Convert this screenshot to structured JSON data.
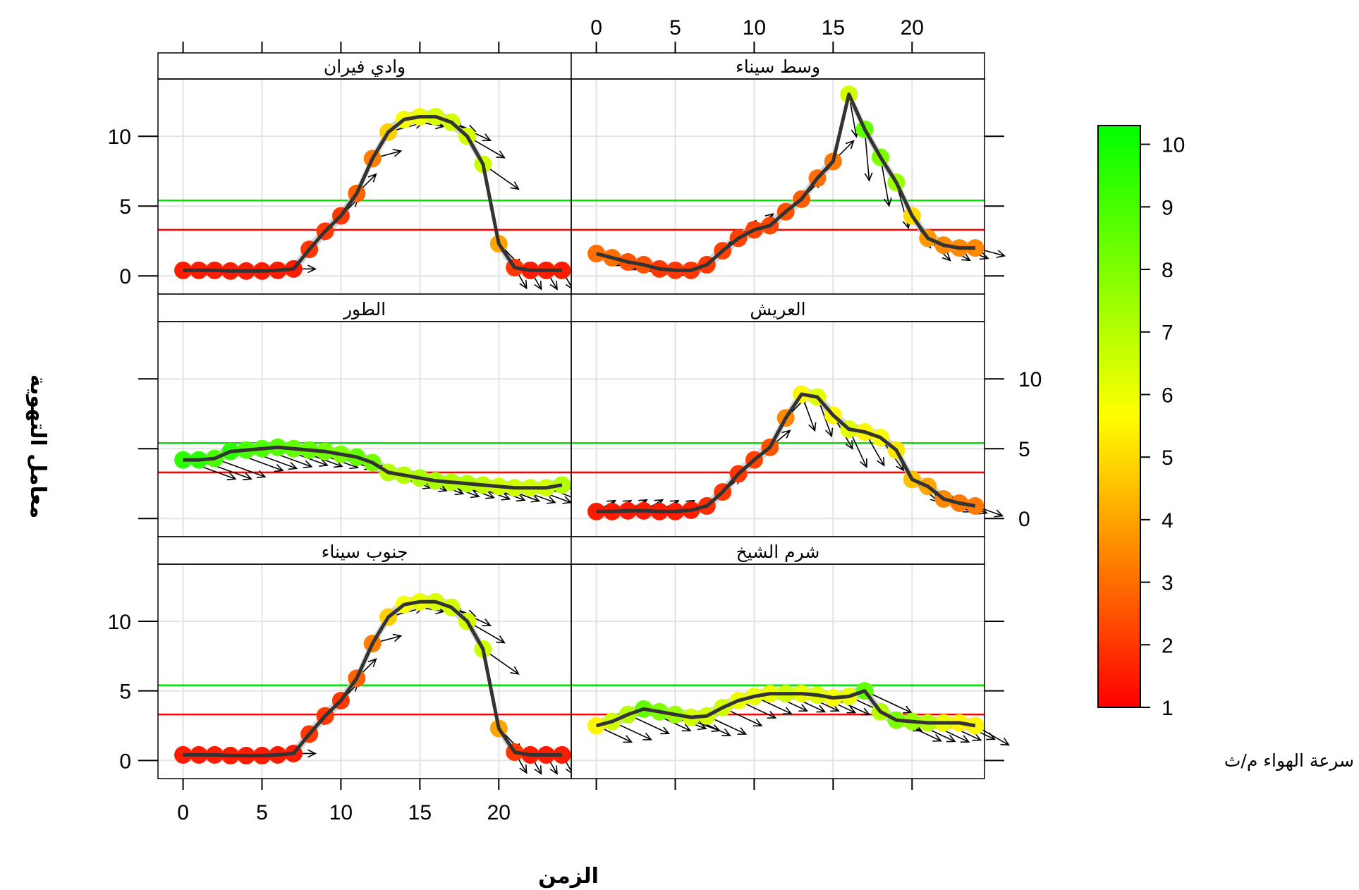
{
  "chart_data": {
    "type": "scatter",
    "xlabel": "الزمن",
    "ylabel": "معامل التهوية",
    "xlim": [
      -1.5,
      24.5
    ],
    "ylim": [
      -1.2,
      14
    ],
    "x_ticks": [
      0,
      5,
      10,
      15,
      20
    ],
    "y_ticks": [
      0,
      5,
      10
    ],
    "reference_lines": [
      {
        "color": "#00e400",
        "y": 5.4
      },
      {
        "color": "#ff0000",
        "y": 3.3
      }
    ],
    "colorbar": {
      "title": "سرعة الهواء م/ث",
      "range": [
        1,
        10.3
      ],
      "ticks": [
        1,
        2,
        3,
        4,
        5,
        6,
        7,
        8,
        9,
        10
      ],
      "colors": [
        "#ff0000",
        "#ffff00",
        "#00ff00"
      ]
    },
    "panels": [
      {
        "name": "وادي فيران",
        "y": [
          0.4,
          0.4,
          0.4,
          0.35,
          0.35,
          0.35,
          0.4,
          0.5,
          1.9,
          3.2,
          4.3,
          5.9,
          8.4,
          10.3,
          11.2,
          11.4,
          11.4,
          11.0,
          10.0,
          8.0,
          2.3,
          0.6,
          0.4,
          0.4,
          0.4
        ],
        "speed": [
          1.5,
          1.5,
          1.5,
          1.5,
          1.5,
          1.5,
          1.5,
          1.5,
          2.0,
          2.0,
          2.0,
          2.8,
          3.3,
          4.8,
          5.8,
          6.0,
          6.3,
          6.5,
          6.5,
          6.6,
          4.0,
          2.0,
          1.5,
          1.5,
          1.5
        ],
        "dir": [
          0,
          0,
          0,
          0,
          0,
          0,
          0,
          0,
          45,
          45,
          45,
          45,
          15,
          15,
          -10,
          -10,
          -20,
          -25,
          -30,
          -35,
          -45,
          -60,
          -60,
          -60,
          -60
        ]
      },
      {
        "name": "وسط سيناء",
        "y": [
          1.6,
          1.3,
          1.0,
          0.8,
          0.5,
          0.4,
          0.4,
          0.8,
          1.8,
          2.7,
          3.3,
          3.6,
          4.6,
          5.5,
          7.0,
          8.2,
          13.0,
          10.5,
          8.5,
          6.7,
          4.3,
          2.7,
          2.2,
          2.0,
          2.0
        ],
        "speed": [
          3.0,
          3.0,
          2.5,
          2.5,
          2.0,
          2.0,
          2.0,
          2.0,
          2.2,
          2.2,
          2.2,
          2.3,
          2.5,
          2.7,
          3.0,
          3.2,
          6.5,
          8.5,
          8.0,
          7.5,
          5.0,
          3.8,
          3.5,
          3.5,
          3.5
        ],
        "dir": [
          -25,
          -25,
          -20,
          -20,
          -15,
          0,
          20,
          40,
          50,
          45,
          40,
          40,
          45,
          45,
          40,
          45,
          -80,
          -85,
          -80,
          -75,
          -60,
          -45,
          -30,
          -20,
          -15
        ]
      },
      {
        "name": "الطور",
        "y": [
          4.2,
          4.2,
          4.3,
          4.8,
          4.9,
          5.0,
          5.1,
          5.0,
          4.9,
          4.8,
          4.6,
          4.4,
          4.0,
          3.3,
          3.1,
          2.9,
          2.7,
          2.6,
          2.5,
          2.4,
          2.3,
          2.2,
          2.2,
          2.2,
          2.4
        ],
        "speed": [
          9.5,
          9.5,
          9.0,
          9.5,
          9.0,
          8.8,
          8.8,
          8.5,
          8.5,
          8.2,
          8.0,
          8.5,
          8.2,
          7.0,
          7.0,
          7.2,
          7.2,
          7.0,
          7.0,
          6.8,
          6.5,
          6.5,
          6.5,
          6.5,
          7.0
        ],
        "dir": [
          -20,
          -20,
          -20,
          -20,
          -20,
          -20,
          -20,
          -20,
          -20,
          -20,
          -20,
          -20,
          -20,
          -20,
          -20,
          -20,
          -20,
          -20,
          -20,
          -20,
          -20,
          -20,
          -20,
          -20,
          -20
        ]
      },
      {
        "name": "العريش",
        "y": [
          0.5,
          0.5,
          0.55,
          0.55,
          0.5,
          0.5,
          0.6,
          0.9,
          1.9,
          3.2,
          4.2,
          5.1,
          7.2,
          8.9,
          8.7,
          7.4,
          6.4,
          6.2,
          5.8,
          4.9,
          2.8,
          2.3,
          1.4,
          1.1,
          0.9
        ],
        "speed": [
          1.5,
          1.5,
          1.5,
          1.5,
          1.5,
          1.5,
          1.5,
          1.8,
          2.0,
          2.0,
          2.2,
          2.5,
          3.5,
          5.5,
          6.2,
          5.5,
          6.2,
          5.5,
          5.8,
          5.2,
          4.5,
          4.0,
          3.5,
          3.2,
          3.2
        ],
        "dir": [
          30,
          30,
          30,
          30,
          30,
          30,
          30,
          35,
          40,
          40,
          40,
          40,
          45,
          -70,
          -70,
          -60,
          -65,
          -60,
          -55,
          -60,
          -40,
          -30,
          -25,
          -20,
          -20
        ]
      },
      {
        "name": "جنوب سيناء",
        "y": [
          0.4,
          0.4,
          0.4,
          0.35,
          0.35,
          0.35,
          0.4,
          0.5,
          1.9,
          3.2,
          4.3,
          5.9,
          8.4,
          10.3,
          11.2,
          11.4,
          11.4,
          11.0,
          10.0,
          8.0,
          2.3,
          0.6,
          0.4,
          0.4,
          0.4
        ],
        "speed": [
          1.5,
          1.5,
          1.5,
          1.5,
          1.5,
          1.5,
          1.5,
          1.5,
          2.0,
          2.0,
          2.0,
          2.8,
          3.3,
          4.8,
          5.8,
          6.0,
          6.3,
          6.5,
          6.5,
          6.6,
          4.0,
          2.0,
          1.5,
          1.5,
          1.5
        ],
        "dir": [
          0,
          0,
          0,
          0,
          0,
          0,
          0,
          0,
          45,
          45,
          45,
          45,
          15,
          15,
          -10,
          -10,
          -20,
          -25,
          -30,
          -35,
          -45,
          -60,
          -60,
          -60,
          -60
        ]
      },
      {
        "name": "شرم الشيخ",
        "y": [
          2.5,
          2.8,
          3.3,
          3.7,
          3.5,
          3.3,
          3.1,
          3.2,
          3.8,
          4.3,
          4.6,
          4.8,
          4.8,
          4.8,
          4.7,
          4.5,
          4.6,
          5.0,
          3.5,
          2.9,
          2.8,
          2.7,
          2.7,
          2.7,
          2.5
        ],
        "speed": [
          5.5,
          6.5,
          7.0,
          8.5,
          8.0,
          7.5,
          6.5,
          6.5,
          6.5,
          6.0,
          6.0,
          6.0,
          6.5,
          6.0,
          6.2,
          5.8,
          6.0,
          8.5,
          7.0,
          8.0,
          7.5,
          7.0,
          6.0,
          5.5,
          5.5
        ],
        "dir": [
          -25,
          -25,
          -25,
          -25,
          -20,
          -20,
          -25,
          -25,
          -25,
          -25,
          -25,
          -25,
          -25,
          -25,
          -25,
          -25,
          -25,
          -25,
          -25,
          -25,
          -25,
          -25,
          -25,
          -25,
          -30
        ]
      }
    ]
  }
}
